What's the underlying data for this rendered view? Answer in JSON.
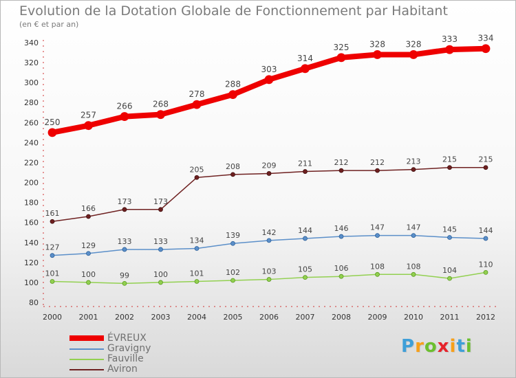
{
  "title": "Evolution de la Dotation Globale de Fonctionnement par Habitant",
  "subtitle": "(en € et par an)",
  "chart_data": {
    "type": "line",
    "title": "Evolution de la Dotation Globale de Fonctionnement par Habitant",
    "subtitle": "(en € et par an)",
    "xlabel": "",
    "ylabel": "",
    "x": [
      2000,
      2001,
      2002,
      2003,
      2004,
      2005,
      2006,
      2007,
      2008,
      2009,
      2010,
      2011,
      2012
    ],
    "ylim": [
      80,
      340
    ],
    "yticks": [
      80,
      100,
      120,
      140,
      160,
      180,
      200,
      220,
      240,
      260,
      280,
      300,
      320,
      340
    ],
    "grid": false,
    "series": [
      {
        "name": "ÉVREUX",
        "color": "#ee0000",
        "values": [
          250,
          257,
          266,
          268,
          278,
          288,
          303,
          314,
          325,
          328,
          328,
          333,
          334
        ]
      },
      {
        "name": "Gravigny",
        "color": "#5b8fc9",
        "values": [
          127,
          129,
          133,
          133,
          134,
          139,
          142,
          144,
          146,
          147,
          147,
          145,
          144
        ]
      },
      {
        "name": "Fauville",
        "color": "#92d050",
        "values": [
          101,
          100,
          99,
          100,
          101,
          102,
          103,
          105,
          106,
          108,
          108,
          104,
          110
        ]
      },
      {
        "name": "Aviron",
        "color": "#6e2020",
        "values": [
          161,
          166,
          173,
          173,
          205,
          208,
          209,
          211,
          212,
          212,
          213,
          215,
          215
        ]
      }
    ]
  },
  "legend": {
    "items": [
      {
        "name": "ÉVREUX",
        "color": "#ee0000"
      },
      {
        "name": "Gravigny",
        "color": "#5b8fc9"
      },
      {
        "name": "Fauville",
        "color": "#92d050"
      },
      {
        "name": "Aviron",
        "color": "#6e2020"
      }
    ]
  },
  "logo": {
    "letters": [
      "P",
      "r",
      "o",
      "x",
      "i",
      "t",
      "i"
    ],
    "colors": [
      "#3f9fd8",
      "#f7a01a",
      "#6cbf2f",
      "#e6232b",
      "#f7a01a",
      "#3f9fd8",
      "#6cbf2f"
    ]
  }
}
